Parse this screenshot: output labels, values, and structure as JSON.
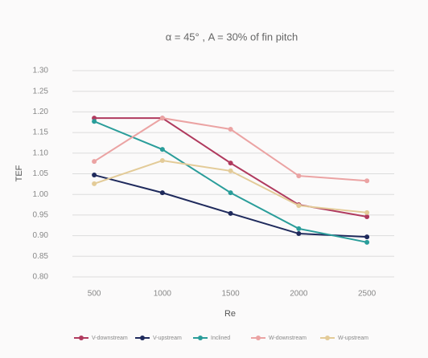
{
  "chart_data": {
    "type": "line",
    "title": "α = 45° , A = 30% of fin pitch",
    "xlabel": "Re",
    "ylabel": "TEF",
    "x": [
      500,
      1000,
      1500,
      2000,
      2500
    ],
    "xlim": [
      340,
      2700
    ],
    "xticks": [
      500,
      1000,
      1500,
      2000,
      2500
    ],
    "ylim": [
      0.8,
      1.3
    ],
    "yticks": [
      {
        "value": 0.8,
        "label": "0.80"
      },
      {
        "value": 0.85,
        "label": "0.85"
      },
      {
        "value": 0.9,
        "label": "0.90"
      },
      {
        "value": 0.95,
        "label": "0.95"
      },
      {
        "value": 1.0,
        "label": "1.00"
      },
      {
        "value": 1.05,
        "label": "1.05"
      },
      {
        "value": 1.1,
        "label": "1.10"
      },
      {
        "value": 1.15,
        "label": "1.15"
      },
      {
        "value": 1.2,
        "label": "1.20"
      },
      {
        "value": 1.25,
        "label": "1.25"
      },
      {
        "value": 1.3,
        "label": "1.30"
      }
    ],
    "grid": true,
    "legend": "bottom",
    "series": [
      {
        "name": "V-downstream",
        "color": "#b03a5e",
        "values": [
          1.185,
          1.185,
          1.076,
          0.975,
          0.946
        ]
      },
      {
        "name": "V-upstream",
        "color": "#1f2a5c",
        "values": [
          1.047,
          1.004,
          0.954,
          0.905,
          0.897
        ]
      },
      {
        "name": "Inclined",
        "color": "#2a9d9a",
        "values": [
          1.177,
          1.109,
          1.004,
          0.917,
          0.884
        ]
      },
      {
        "name": "W-downstream",
        "color": "#eba3a3",
        "values": [
          1.08,
          1.185,
          1.158,
          1.045,
          1.033
        ]
      },
      {
        "name": "W-upstream",
        "color": "#e3cb98",
        "values": [
          1.026,
          1.082,
          1.057,
          0.973,
          0.956
        ]
      }
    ]
  }
}
